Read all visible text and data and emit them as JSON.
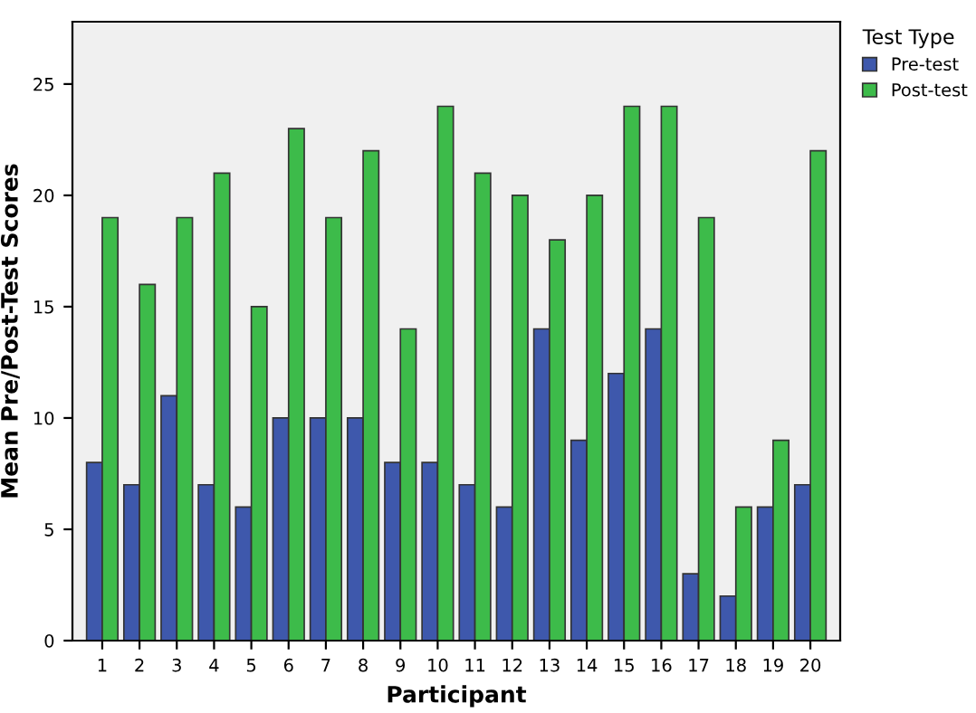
{
  "chart_data": {
    "type": "bar",
    "xlabel": "Participant",
    "ylabel": "Mean Pre/Post-Test Scores",
    "legend_title": "Test Type",
    "categories": [
      "1",
      "2",
      "3",
      "4",
      "5",
      "6",
      "7",
      "8",
      "9",
      "10",
      "11",
      "12",
      "13",
      "14",
      "15",
      "16",
      "17",
      "18",
      "19",
      "20"
    ],
    "series": [
      {
        "name": "Pre-test",
        "color": "#3e58ac",
        "values": [
          8,
          7,
          11,
          7,
          6,
          10,
          10,
          10,
          8,
          8,
          7,
          6,
          14,
          9,
          12,
          14,
          3,
          2,
          6,
          7
        ]
      },
      {
        "name": "Post-test",
        "color": "#3dbb4a",
        "values": [
          19,
          16,
          19,
          21,
          15,
          23,
          19,
          22,
          14,
          24,
          21,
          20,
          18,
          20,
          24,
          24,
          19,
          6,
          9,
          22
        ]
      }
    ],
    "ylim": [
      0,
      27.8
    ],
    "yticks": [
      0,
      5,
      10,
      15,
      20,
      25
    ],
    "grid": false,
    "legend": "top right"
  }
}
